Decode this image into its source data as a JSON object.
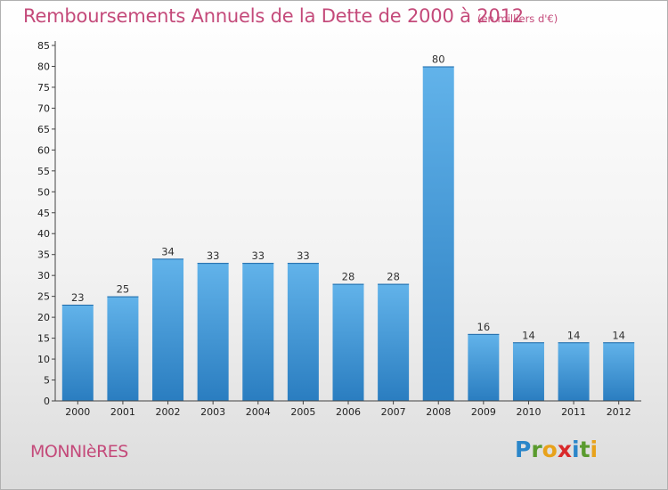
{
  "header": {
    "title": "Remboursements Annuels de la Dette de 2000 à 2012",
    "subtitle": "(en milliers d'€)"
  },
  "footer": {
    "commune": "MONNIèRES",
    "logo_text": "Proxiti",
    "logo_letters": [
      {
        "ch": "P",
        "color": "#2b86c9"
      },
      {
        "ch": "r",
        "color": "#5a9b2e"
      },
      {
        "ch": "o",
        "color": "#e8a21b"
      },
      {
        "ch": "x",
        "color": "#d9292b"
      },
      {
        "ch": "i",
        "color": "#2b86c9"
      },
      {
        "ch": "t",
        "color": "#5a9b2e"
      },
      {
        "ch": "i",
        "color": "#e8a21b"
      }
    ]
  },
  "colors": {
    "bar_top": "#62b3ea",
    "bar_bottom": "#2a7dc0",
    "title": "#c44a7a"
  },
  "chart_data": {
    "type": "bar",
    "title": "Remboursements Annuels de la Dette de 2000 à 2012",
    "categories": [
      "2000",
      "2001",
      "2002",
      "2003",
      "2004",
      "2005",
      "2006",
      "2007",
      "2008",
      "2009",
      "2010",
      "2011",
      "2012"
    ],
    "values": [
      23,
      25,
      34,
      33,
      33,
      33,
      28,
      28,
      80,
      16,
      14,
      14,
      14
    ],
    "ylim": [
      0,
      85
    ],
    "yticks": [
      0,
      5,
      10,
      15,
      20,
      25,
      30,
      35,
      40,
      45,
      50,
      55,
      60,
      65,
      70,
      75,
      80,
      85
    ],
    "grid": false,
    "data_labels": true
  }
}
